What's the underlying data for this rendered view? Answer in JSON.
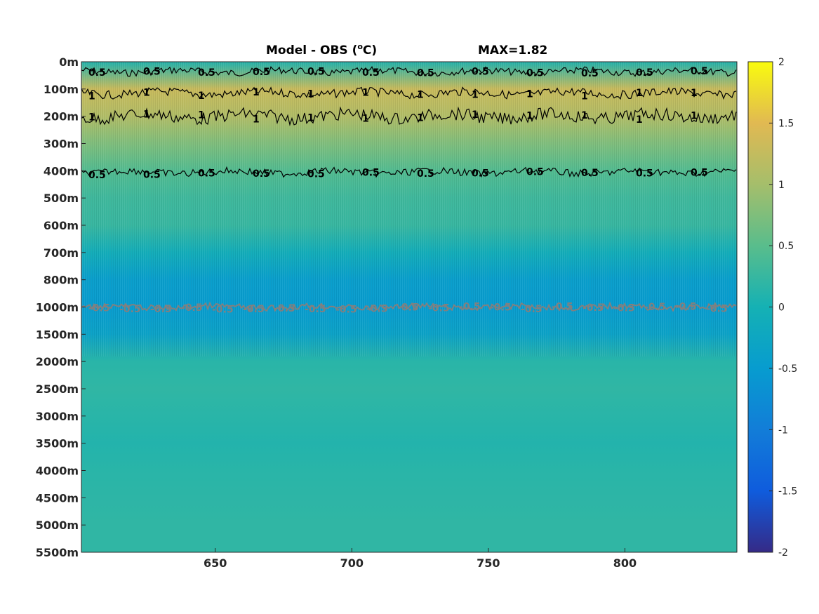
{
  "chart_data": {
    "type": "heatmap",
    "title": {
      "main": "Model - OBS (",
      "sup": "o",
      "unit": "C)",
      "max_label": "MAX=1.82"
    },
    "x_ticks": [
      650,
      700,
      750,
      800
    ],
    "xlim": [
      601,
      841
    ],
    "y_tick_labels": [
      "0m",
      "100m",
      "200m",
      "300m",
      "400m",
      "500m",
      "600m",
      "700m",
      "800m",
      "1000m",
      "1500m",
      "2000m",
      "2500m",
      "3000m",
      "3500m",
      "4000m",
      "4500m",
      "5000m",
      "5500m"
    ],
    "colorbar": {
      "ticks": [
        "2",
        "1.5",
        "1",
        "0.5",
        "0",
        "-0.5",
        "-1",
        "-1.5",
        "-2"
      ],
      "clim": [
        -2,
        2
      ],
      "colormap": "parula"
    },
    "depth_profile": [
      {
        "depth_label": "0m",
        "value": 0.1
      },
      {
        "depth_label": "100m",
        "value": 1.3
      },
      {
        "depth_label": "200m",
        "value": 1.1
      },
      {
        "depth_label": "300m",
        "value": 0.75
      },
      {
        "depth_label": "400m",
        "value": 0.45
      },
      {
        "depth_label": "500m",
        "value": 0.3
      },
      {
        "depth_label": "600m",
        "value": 0.25
      },
      {
        "depth_label": "700m",
        "value": -0.1
      },
      {
        "depth_label": "800m",
        "value": -0.45
      },
      {
        "depth_label": "1000m",
        "value": -0.5
      },
      {
        "depth_label": "1500m",
        "value": -0.35
      },
      {
        "depth_label": "2000m",
        "value": 0.15
      },
      {
        "depth_label": "2500m",
        "value": 0.2
      },
      {
        "depth_label": "3000m",
        "value": 0.15
      },
      {
        "depth_label": "3500m",
        "value": 0.1
      },
      {
        "depth_label": "4000m",
        "value": 0.15
      },
      {
        "depth_label": "4500m",
        "value": 0.18
      },
      {
        "depth_label": "5000m",
        "value": 0.2
      },
      {
        "depth_label": "5500m",
        "value": 0.2
      }
    ],
    "contours": [
      {
        "level": 0.5,
        "color": "#000000",
        "label": "0.5",
        "depth_label": "0m"
      },
      {
        "level": 1,
        "color": "#000000",
        "label": "1",
        "depth_label": "100m"
      },
      {
        "level": 1,
        "color": "#000000",
        "label": "1",
        "depth_label": "200m"
      },
      {
        "level": 0.5,
        "color": "#000000",
        "label": "0.5",
        "depth_label": "400m"
      },
      {
        "level": -0.5,
        "color": "#808080",
        "label": "-0.5",
        "depth_label": "1000m"
      }
    ]
  }
}
